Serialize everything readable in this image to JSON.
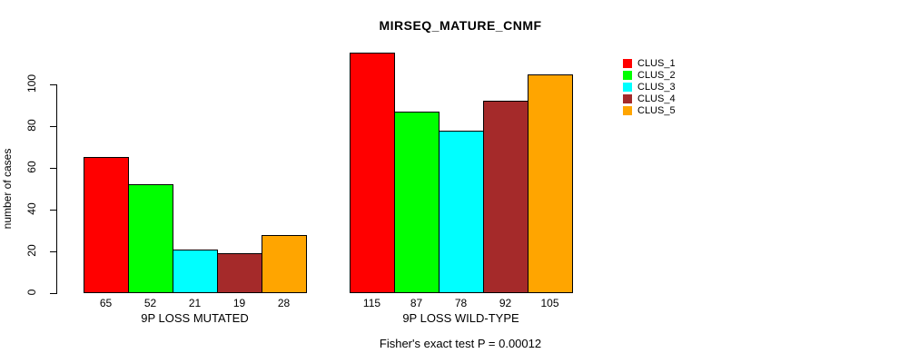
{
  "title": "MIRSEQ_MATURE_CNMF",
  "annotation": "Fisher's exact test P = 0.00012",
  "chart_data": {
    "type": "bar",
    "title": "MIRSEQ_MATURE_CNMF",
    "xlabel": "",
    "ylabel": "number of cases",
    "ylim": [
      0,
      100
    ],
    "yticks": [
      0,
      20,
      40,
      60,
      80,
      100
    ],
    "grid": false,
    "legend_position": "top-right-outside",
    "categories": [
      "9P LOSS MUTATED",
      "9P LOSS WILD-TYPE"
    ],
    "groups": [
      {
        "label": "9P LOSS MUTATED",
        "values": [
          65,
          52,
          21,
          19,
          28
        ]
      },
      {
        "label": "9P LOSS WILD-TYPE",
        "values": [
          115,
          87,
          78,
          92,
          105
        ]
      }
    ],
    "series": [
      {
        "name": "CLUS_1",
        "color": "#ff0000",
        "values": [
          65,
          115
        ]
      },
      {
        "name": "CLUS_2",
        "color": "#00ff00",
        "values": [
          52,
          87
        ]
      },
      {
        "name": "CLUS_3",
        "color": "#00ffff",
        "values": [
          21,
          78
        ]
      },
      {
        "name": "CLUS_4",
        "color": "#a52a2a",
        "values": [
          19,
          92
        ]
      },
      {
        "name": "CLUS_5",
        "color": "#ffa500",
        "values": [
          28,
          105
        ]
      }
    ],
    "annotation": "Fisher's exact test P = 0.00012",
    "bar_border_color": "#000000",
    "background_color": "#ffffff",
    "text_color": "#000000"
  }
}
